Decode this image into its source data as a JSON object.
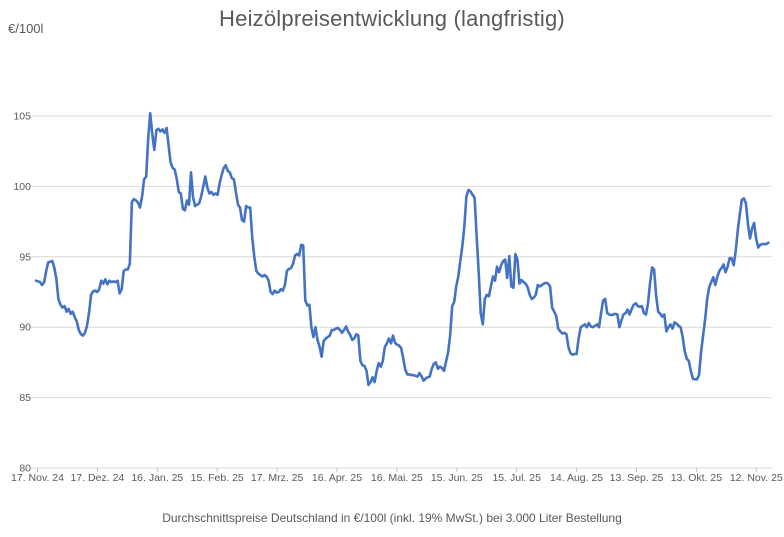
{
  "header": {
    "title": "Heizölpreisentwicklung (langfristig)",
    "y_axis_unit": "€/100l"
  },
  "footer": {
    "caption": "Durchschnittspreise Deutschland in €/100l (inkl. 19% MwSt.) bei 3.000 Liter Bestellung"
  },
  "colors": {
    "line": "#4472C4",
    "grid": "#D9D9D9",
    "tick": "#BFBFBF",
    "label": "#595959"
  },
  "chart_data": {
    "type": "line",
    "title": "Heizölpreisentwicklung (langfristig)",
    "subtitle": "Durchschnittspreise Deutschland in €/100l (inkl. 19% MwSt.) bei 3.000 Liter Bestellung",
    "ylabel": "€/100l",
    "xlabel": "",
    "grid": true,
    "legend_position": "none",
    "ylim": [
      80,
      106.5
    ],
    "yticks": [
      80,
      85,
      90,
      95,
      100,
      105
    ],
    "x_tick_labels": [
      "17. Nov. 24",
      "17. Dez. 24",
      "16. Jan. 25",
      "15. Feb. 25",
      "17. Mrz. 25",
      "16. Apr. 25",
      "16. Mai. 25",
      "15. Jun. 25",
      "15. Jul. 25",
      "14. Aug. 25",
      "13. Sep. 25",
      "13. Okt. 25",
      "12. Nov. 25"
    ],
    "days_between_ticks": 30,
    "series": [
      {
        "name": "Heizölpreis €/100l",
        "color": "#4472C4",
        "sampling": "daily, index 0 = 17. Nov. 24",
        "values": [
          93.3,
          93.25,
          93.2,
          93.0,
          93.2,
          94.0,
          94.6,
          94.65,
          94.7,
          94.2,
          93.4,
          92.0,
          91.6,
          91.4,
          91.5,
          91.1,
          91.3,
          90.95,
          91.1,
          90.7,
          90.4,
          89.8,
          89.5,
          89.4,
          89.6,
          90.1,
          91.0,
          92.3,
          92.55,
          92.6,
          92.5,
          92.7,
          93.3,
          93.1,
          93.4,
          93.05,
          93.3,
          93.2,
          93.25,
          93.2,
          93.3,
          92.4,
          92.7,
          94.0,
          94.1,
          94.1,
          94.5,
          98.9,
          99.1,
          99.0,
          98.85,
          98.5,
          99.3,
          100.5,
          100.7,
          103.4,
          105.2,
          103.7,
          102.6,
          104.0,
          104.1,
          103.9,
          104.05,
          103.8,
          104.15,
          102.9,
          101.7,
          101.3,
          101.2,
          100.5,
          99.6,
          99.5,
          98.4,
          98.3,
          99.0,
          98.7,
          101.0,
          99.2,
          98.6,
          98.7,
          98.8,
          99.3,
          100.0,
          100.7,
          99.9,
          99.5,
          99.6,
          99.4,
          99.5,
          99.4,
          100.2,
          100.8,
          101.3,
          101.5,
          101.1,
          101.0,
          100.6,
          100.5,
          99.6,
          98.7,
          98.5,
          97.6,
          97.5,
          98.6,
          98.5,
          98.5,
          96.4,
          95.0,
          94.0,
          93.8,
          93.7,
          93.6,
          93.7,
          93.6,
          93.3,
          92.5,
          92.35,
          92.6,
          92.45,
          92.5,
          92.7,
          92.6,
          93.0,
          94.0,
          94.15,
          94.2,
          94.5,
          95.1,
          95.2,
          95.1,
          95.85,
          95.8,
          91.9,
          91.55,
          91.6,
          90.0,
          89.3,
          90.0,
          89.1,
          88.6,
          87.9,
          89.0,
          89.2,
          89.3,
          89.4,
          89.8,
          89.8,
          89.9,
          89.95,
          89.8,
          89.6,
          89.8,
          90.05,
          89.7,
          89.45,
          89.1,
          89.2,
          89.5,
          89.4,
          87.6,
          87.3,
          87.25,
          86.9,
          85.9,
          86.1,
          86.45,
          86.1,
          86.9,
          87.45,
          87.2,
          87.6,
          88.6,
          88.85,
          89.2,
          88.85,
          89.4,
          88.9,
          88.75,
          88.7,
          88.5,
          87.8,
          87.0,
          86.65,
          86.65,
          86.6,
          86.6,
          86.55,
          86.5,
          86.75,
          86.5,
          86.2,
          86.35,
          86.45,
          86.5,
          87.05,
          87.4,
          87.5,
          87.05,
          87.2,
          87.1,
          86.9,
          87.55,
          88.2,
          89.4,
          91.5,
          91.8,
          92.9,
          93.6,
          94.7,
          95.8,
          97.2,
          99.3,
          99.75,
          99.65,
          99.4,
          99.2,
          96.5,
          93.9,
          91.0,
          90.2,
          92.0,
          92.3,
          92.2,
          92.9,
          93.6,
          93.3,
          94.3,
          93.9,
          94.4,
          94.7,
          94.8,
          93.5,
          95.05,
          92.9,
          92.8,
          95.2,
          94.8,
          93.1,
          93.35,
          93.2,
          93.1,
          92.85,
          92.3,
          92.0,
          92.1,
          92.3,
          93.0,
          92.9,
          93.0,
          93.1,
          93.15,
          93.1,
          92.9,
          91.4,
          91.1,
          90.8,
          89.9,
          89.7,
          89.55,
          89.6,
          89.5,
          88.6,
          88.15,
          88.05,
          88.1,
          88.1,
          89.2,
          90.0,
          90.1,
          90.2,
          90.0,
          90.3,
          90.05,
          90.0,
          90.1,
          90.2,
          90.0,
          91.0,
          91.9,
          92.0,
          91.0,
          90.9,
          90.85,
          90.9,
          90.95,
          90.9,
          90.0,
          90.5,
          90.9,
          91.0,
          91.25,
          90.9,
          91.3,
          91.6,
          91.7,
          91.5,
          91.45,
          91.5,
          91.0,
          90.9,
          91.7,
          93.1,
          94.25,
          94.1,
          92.2,
          91.1,
          90.95,
          90.75,
          90.9,
          89.7,
          90.0,
          90.2,
          89.9,
          90.35,
          90.25,
          90.1,
          90.0,
          89.3,
          88.3,
          87.75,
          87.6,
          86.9,
          86.35,
          86.3,
          86.3,
          86.6,
          88.2,
          89.4,
          90.55,
          92.0,
          92.85,
          93.2,
          93.55,
          93.0,
          93.6,
          94.0,
          94.2,
          94.45,
          93.9,
          94.3,
          94.9,
          94.9,
          94.4,
          95.4,
          96.9,
          98.0,
          99.05,
          99.15,
          98.8,
          97.3,
          96.3,
          97.0,
          97.4,
          96.3,
          95.65,
          95.85,
          95.9,
          95.9,
          95.9,
          96.0
        ]
      }
    ]
  }
}
